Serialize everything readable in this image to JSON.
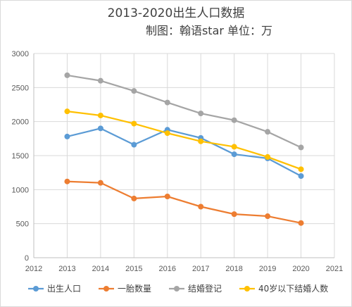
{
  "chart_data": {
    "type": "line",
    "title": "2013-2020出生人口数据",
    "subtitle": "制图：翰语star 单位：万",
    "x": [
      2013,
      2014,
      2015,
      2016,
      2017,
      2018,
      2019,
      2020
    ],
    "xlim": [
      2012,
      2021
    ],
    "ylim": [
      0,
      3000
    ],
    "x_ticks": [
      "2012",
      "2013",
      "2014",
      "2015",
      "2016",
      "2017",
      "2018",
      "2019",
      "2020",
      "2021"
    ],
    "y_ticks": [
      "0",
      "500",
      "1000",
      "1500",
      "2000",
      "2500",
      "3000"
    ],
    "grid": true,
    "legend": "bottom",
    "series": [
      {
        "name": "出生人口",
        "color": "#5b9bd5",
        "values": [
          1780,
          1900,
          1660,
          1880,
          1760,
          1520,
          1460,
          1200
        ]
      },
      {
        "name": "一胎数量",
        "color": "#ed7d31",
        "values": [
          1120,
          1100,
          870,
          900,
          750,
          640,
          610,
          510
        ]
      },
      {
        "name": "结婚登记",
        "color": "#a5a5a5",
        "values": [
          2680,
          2600,
          2450,
          2280,
          2120,
          2020,
          1850,
          1620
        ]
      },
      {
        "name": "40岁以下结婚人数",
        "color": "#ffc000",
        "values": [
          2150,
          2090,
          1970,
          1830,
          1710,
          1630,
          1480,
          1300
        ]
      }
    ]
  }
}
